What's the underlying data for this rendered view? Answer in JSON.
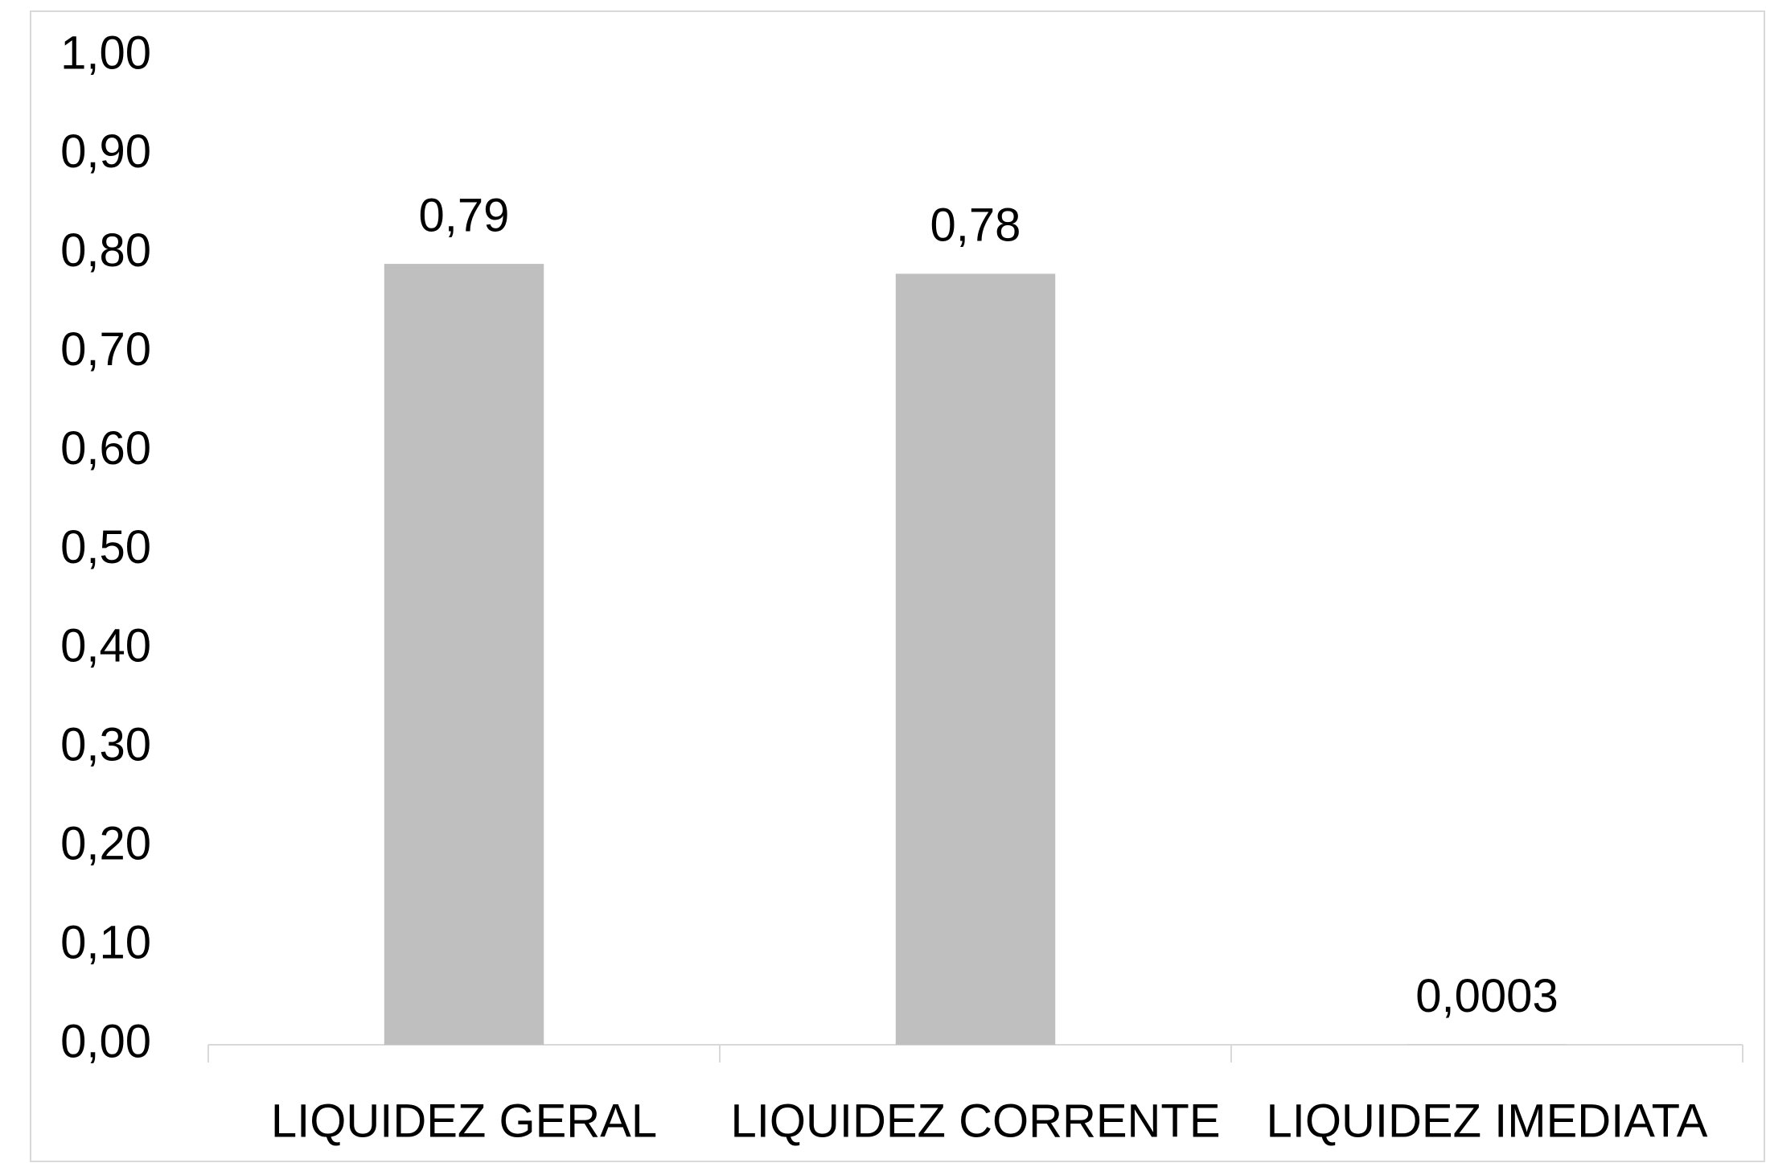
{
  "chart_data": {
    "type": "bar",
    "categories": [
      "LIQUIDEZ GERAL",
      "LIQUIDEZ CORRENTE",
      "LIQUIDEZ IMEDIATA"
    ],
    "values": [
      0.79,
      0.78,
      0.0003
    ],
    "value_labels": [
      "0,79",
      "0,78",
      "0,0003"
    ],
    "color": "#bfbfbf",
    "ylim": [
      0,
      1
    ],
    "yticks": [
      {
        "value": 0,
        "label": "0,00"
      },
      {
        "value": 0.1,
        "label": "0,10"
      },
      {
        "value": 0.2,
        "label": "0,20"
      },
      {
        "value": 0.3,
        "label": "0,30"
      },
      {
        "value": 0.4,
        "label": "0,40"
      },
      {
        "value": 0.5,
        "label": "0,50"
      },
      {
        "value": 0.6,
        "label": "0,60"
      },
      {
        "value": 0.7,
        "label": "0,70"
      },
      {
        "value": 0.8,
        "label": "0,80"
      },
      {
        "value": 0.9,
        "label": "0,90"
      },
      {
        "value": 1,
        "label": "1,00"
      }
    ],
    "grid": false
  }
}
